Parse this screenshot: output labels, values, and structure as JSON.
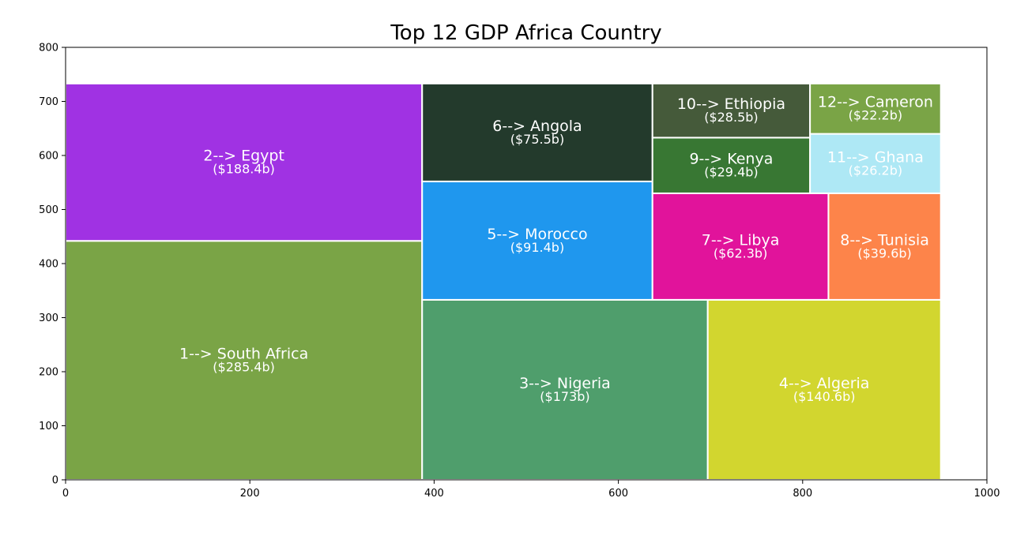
{
  "chart_data": {
    "type": "treemap",
    "title": "Top 12 GDP Africa Country",
    "xlabel": "",
    "ylabel": "",
    "xlim": [
      0,
      1000
    ],
    "ylim": [
      0,
      800
    ],
    "x_ticks": [
      "0",
      "200",
      "400",
      "600",
      "800",
      "1000"
    ],
    "y_ticks": [
      "0",
      "100",
      "200",
      "300",
      "400",
      "500",
      "600",
      "700",
      "800"
    ],
    "cells": [
      {
        "label": "1--> South Africa",
        "value_label": "($285.4b)",
        "value": 285.4,
        "x0": 0,
        "y0": 0,
        "x1": 387,
        "y1": 442,
        "color": "#7aa446"
      },
      {
        "label": "2--> Egypt",
        "value_label": "($188.4b)",
        "value": 188.4,
        "x0": 0,
        "y0": 442,
        "x1": 387,
        "y1": 733,
        "color": "#a032e3"
      },
      {
        "label": "3--> Nigeria",
        "value_label": "($173b)",
        "value": 173.0,
        "x0": 387,
        "y0": 0,
        "x1": 697,
        "y1": 333,
        "color": "#4f9e6c"
      },
      {
        "label": "4--> Algeria",
        "value_label": "($140.6b)",
        "value": 140.6,
        "x0": 697,
        "y0": 0,
        "x1": 950,
        "y1": 333,
        "color": "#d2d62f"
      },
      {
        "label": "5--> Morocco",
        "value_label": "($91.4b)",
        "value": 91.4,
        "x0": 387,
        "y0": 333,
        "x1": 637,
        "y1": 552,
        "color": "#1f97ee"
      },
      {
        "label": "6--> Angola",
        "value_label": "($75.5b)",
        "value": 75.5,
        "x0": 387,
        "y0": 552,
        "x1": 637,
        "y1": 733,
        "color": "#233a2c"
      },
      {
        "label": "7--> Libya",
        "value_label": "($62.3b)",
        "value": 62.3,
        "x0": 637,
        "y0": 333,
        "x1": 828,
        "y1": 530,
        "color": "#e1139b"
      },
      {
        "label": "8--> Tunisia",
        "value_label": "($39.6b)",
        "value": 39.6,
        "x0": 828,
        "y0": 333,
        "x1": 950,
        "y1": 530,
        "color": "#fd844a"
      },
      {
        "label": "9--> Kenya",
        "value_label": "($29.4b)",
        "value": 29.4,
        "x0": 637,
        "y0": 530,
        "x1": 808,
        "y1": 633,
        "color": "#387733"
      },
      {
        "label": "10--> Ethiopia",
        "value_label": "($28.5b)",
        "value": 28.5,
        "x0": 637,
        "y0": 633,
        "x1": 808,
        "y1": 733,
        "color": "#455a3a"
      },
      {
        "label": "11--> Ghana",
        "value_label": "($26.2b)",
        "value": 26.2,
        "x0": 808,
        "y0": 530,
        "x1": 950,
        "y1": 640,
        "color": "#aee8f5"
      },
      {
        "label": "12--> Cameron",
        "value_label": "($22.2b)",
        "value": 22.2,
        "x0": 808,
        "y0": 640,
        "x1": 950,
        "y1": 733,
        "color": "#7aa446"
      }
    ]
  }
}
